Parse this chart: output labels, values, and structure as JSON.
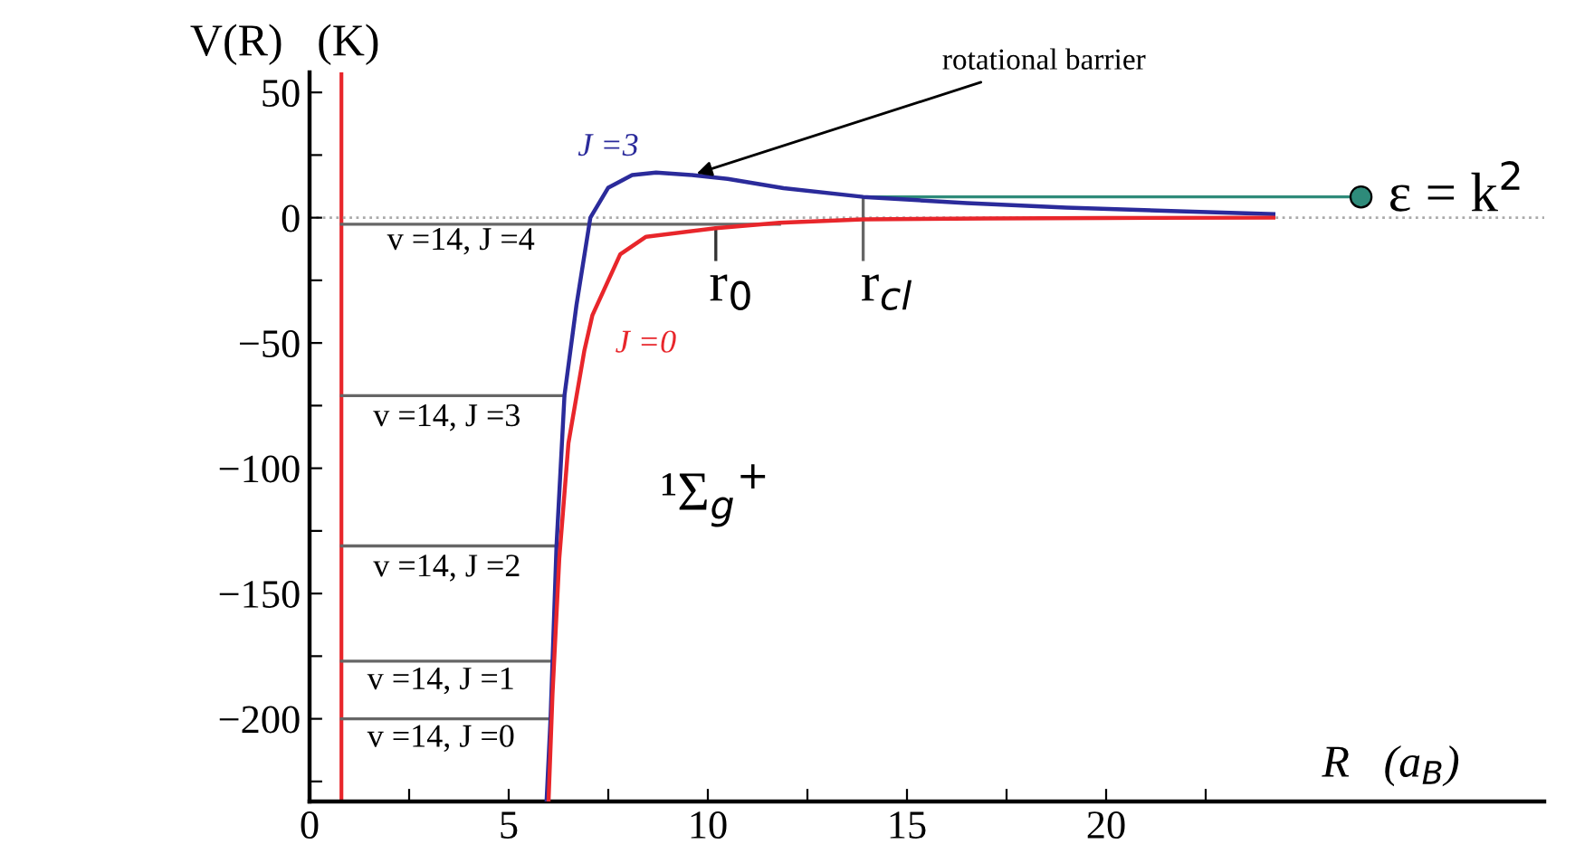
{
  "chart_data": {
    "type": "line",
    "xlabel": "R   (a$_{B}$)",
    "ylabel": "V(R)   (K)",
    "xlim": [
      0,
      31
    ],
    "ylim": [
      -233,
      58
    ],
    "xticks": [
      0,
      {
        "value": 2.5,
        "label": null
      },
      5,
      {
        "value": 7.5,
        "label": null
      },
      10,
      {
        "value": 12.5,
        "label": null
      },
      15,
      {
        "value": 17.5,
        "label": null
      },
      20,
      {
        "value": 22.5,
        "label": null
      }
    ],
    "yticks": [
      50,
      {
        "value": 25,
        "label": null
      },
      0,
      {
        "value": -25,
        "label": null
      },
      {
        "value": -50,
        "label": "−50"
      },
      {
        "value": -75,
        "label": null
      },
      {
        "value": -100,
        "label": "−100"
      },
      {
        "value": -125,
        "label": null
      },
      {
        "value": -150,
        "label": "−150"
      },
      {
        "value": -175,
        "label": null
      },
      {
        "value": -200,
        "label": "−200"
      },
      {
        "value": -225,
        "label": null
      }
    ],
    "grid": false,
    "legend": false,
    "series": [
      {
        "name": "J =3",
        "color": "#2b2b9b",
        "x": [
          5.95,
          6.05,
          6.2,
          6.4,
          6.7,
          7.05,
          7.5,
          8.1,
          8.7,
          9.6,
          10.5,
          11.9,
          13.9,
          16.5,
          19,
          22,
          24.2
        ],
        "values": [
          -233,
          -200,
          -131,
          -71,
          -35,
          0,
          12,
          17,
          18,
          17,
          15.5,
          11.8,
          8.3,
          5.8,
          4,
          2.5,
          1.4
        ]
      },
      {
        "name": "J =0",
        "color": "#e8262b",
        "x": [
          6.0,
          6.1,
          6.27,
          6.5,
          6.9,
          7.1,
          7.8,
          8.45,
          10.2,
          11.8,
          13.9,
          17,
          20,
          24.2
        ],
        "values": [
          -233,
          -190,
          -136,
          -90,
          -53,
          -39,
          -14.6,
          -7.6,
          -4.2,
          -2,
          -0.7,
          -0.3,
          -0.1,
          0
        ]
      },
      {
        "color": "#2e8b7a",
        "x": [
          13.9,
          26.4
        ],
        "values": [
          8.3,
          8.3
        ]
      },
      {
        "type": "scatter",
        "color": "#2e8b7a",
        "x": [
          26.4
        ],
        "values": [
          8.3
        ]
      },
      {
        "color": "#666666",
        "x": [
          0.8,
          11.8
        ],
        "values": [
          -2.6,
          -2.6
        ]
      },
      {
        "color": "#666666",
        "x": [
          0.8,
          6.4
        ],
        "values": [
          -71,
          -71
        ]
      },
      {
        "color": "#666666",
        "x": [
          0.8,
          6.2
        ],
        "values": [
          -131,
          -131
        ]
      },
      {
        "color": "#666666",
        "x": [
          0.8,
          6.05
        ],
        "values": [
          -177,
          -177
        ]
      },
      {
        "color": "#666666",
        "x": [
          0.8,
          6.0
        ],
        "values": [
          -200,
          -200
        ]
      },
      {
        "color": "#333333",
        "x": [
          10.2,
          10.2
        ],
        "values": [
          -4.2,
          -16.7
        ]
      },
      {
        "color": "#666666",
        "x": [
          13.9,
          13.9
        ],
        "values": [
          8.3,
          -16.7
        ]
      }
    ],
    "ref_lines": [
      {
        "axis": "x",
        "value": 0.8,
        "color": "#e8262b"
      },
      {
        "axis": "y",
        "value": 0,
        "color": "#aaaaaa",
        "line_style": "dotted"
      }
    ],
    "annotations": [
      {
        "text": "rotational barrier",
        "x": 9.6,
        "y": 17
      },
      "v =14, J =4",
      "v =14, J =3",
      "v =14, J =2",
      "v =14, J =1",
      "v =14, J =0",
      "r$_{0}$",
      "r$_{cl}$",
      "¹Σ$_{g}$$^{+}$",
      "ε = k$^{2}$"
    ]
  }
}
